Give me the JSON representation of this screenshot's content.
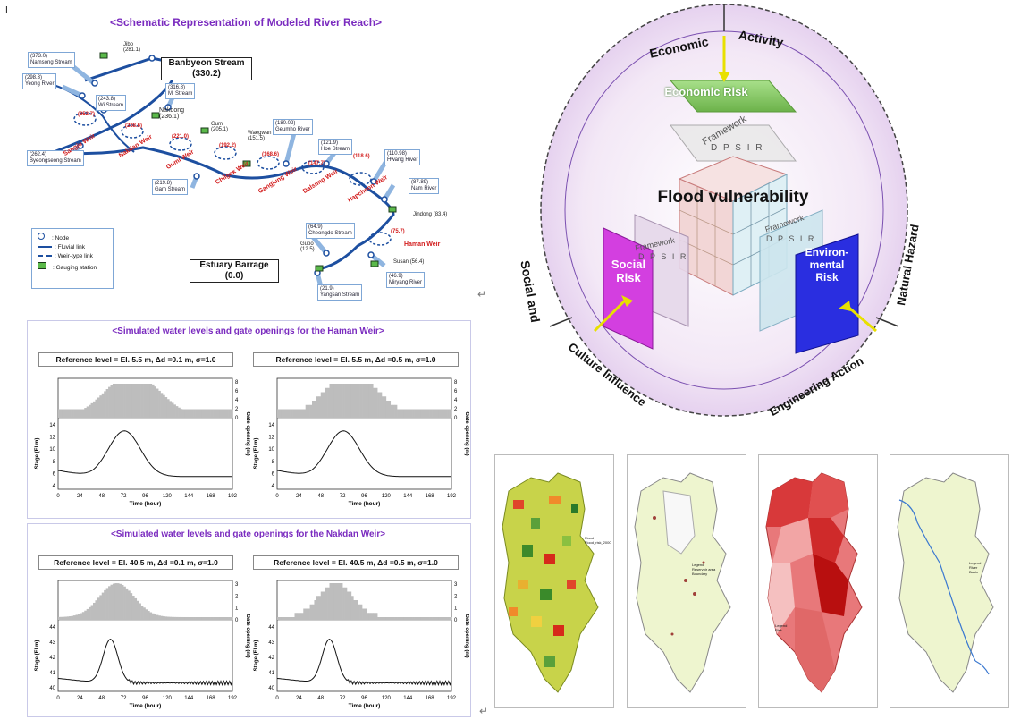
{
  "page_mark": "I",
  "river": {
    "title": "<Schematic Representation of Modeled River Reach>",
    "banbyeon": "Banbyeon Stream",
    "banbyeon_km": "(330.2)",
    "estuary": "Estuary Barrage",
    "estuary_km": "(0.0)",
    "streams": [
      {
        "code": "(373.0)",
        "name": "Namsong Stream"
      },
      {
        "code": "(298.3)",
        "name": "Yeong River"
      },
      {
        "code": "(243.8)",
        "name": "Wi Stream"
      },
      {
        "code": "(316.8)",
        "name": "Mi Stream"
      },
      {
        "code": "(262.4)",
        "name": "Byeongseong Stream"
      },
      {
        "code": "(219.8)",
        "name": "Gam Stream"
      },
      {
        "code": "(180.02)",
        "name": "Geumho River"
      },
      {
        "code": "(121.9)",
        "name": "Hoe Stream"
      },
      {
        "code": "(110.98)",
        "name": "Hwang River"
      },
      {
        "code": "(87.89)",
        "name": "Nam River"
      },
      {
        "code": "(64.9)",
        "name": "Cheongdo Stream"
      },
      {
        "code": "(46.9)",
        "name": "Miryang River"
      },
      {
        "code": "(21.9)",
        "name": "Yangsan Stream"
      }
    ],
    "stations": [
      {
        "name": "Jibo",
        "km": "(281.1)"
      },
      {
        "name": "Nakdong",
        "km": "(236.1)"
      },
      {
        "name": "Gumi",
        "km": "(205.1)"
      },
      {
        "name": "Waegwan",
        "km": "(151.5)"
      },
      {
        "name": "Jindong",
        "km": "(83.4)"
      },
      {
        "name": "Susan",
        "km": "(56.4)"
      },
      {
        "name": "Gupo",
        "km": "(12.5)"
      }
    ],
    "weirs": [
      {
        "name": "Sangju Weir",
        "km": "(252.7)"
      },
      {
        "name": "Nakdan Weir",
        "km": "(238.6)"
      },
      {
        "name": "Gumi Weir",
        "km": "(221.0)"
      },
      {
        "name": "Chilgok Weir",
        "km": "(192.2)"
      },
      {
        "name": "Gangjung Weir",
        "km": "(168.6)"
      },
      {
        "name": "Dalsung Weir",
        "km": "(147.7)"
      },
      {
        "name": "Hapcheon Weir",
        "km": "(118.6)"
      },
      {
        "name": "Haman Weir",
        "km": "(75.7)"
      }
    ],
    "legend": [
      {
        "sym": "node",
        "label": ": Node"
      },
      {
        "sym": "fluvial",
        "label": ": Fluvial link"
      },
      {
        "sym": "weir",
        "label": ": Weir-type link"
      },
      {
        "sym": "gauging",
        "label": ": Gauging station"
      }
    ]
  },
  "haman": {
    "title": "<Simulated water levels and gate openings for the Haman Weir>",
    "left_label": "Reference level = El. 5.5 m, Δd =0.1 m, σ=1.0",
    "right_label": "Reference level = El. 5.5 m, Δd =0.5 m, σ=1.0",
    "ylabel": "Stage (El.m)",
    "y2label": "Gate opening (m)",
    "xlabel": "Time (hour)",
    "xticks": [
      "0",
      "24",
      "48",
      "72",
      "96",
      "120",
      "144",
      "168",
      "192"
    ],
    "yticks": [
      "4",
      "6",
      "8",
      "10",
      "12",
      "14"
    ],
    "y2ticks": [
      "0",
      "2",
      "4",
      "6",
      "8"
    ]
  },
  "nakdan": {
    "title": "<Simulated water levels and gate openings for the Nakdan Weir>",
    "left_label": "Reference level = El. 40.5 m, Δd =0.1 m, σ=1.0",
    "right_label": "Reference level = El. 40.5 m, Δd =0.5 m, σ=1.0",
    "ylabel": "Stage (El.m)",
    "y2label": "Gate opening (m)",
    "xlabel": "Time (hour)",
    "xticks": [
      "0",
      "24",
      "48",
      "72",
      "96",
      "120",
      "144",
      "168",
      "192"
    ],
    "yticks": [
      "40",
      "41",
      "42",
      "43",
      "44"
    ],
    "y2ticks": [
      "0",
      "1",
      "2",
      "3"
    ]
  },
  "vulnerability": {
    "center": "Flood vulnerability",
    "economic_risk": "Economic Risk",
    "social_risk": "Social Risk",
    "env_risk": "Environ-mental Risk",
    "framework": "Framework",
    "dpsir": "D P S I R",
    "arc_labels": {
      "top_left": "Economic",
      "top_right": "Activity",
      "left_upper": "Social and",
      "left_lower": "Culture Influence",
      "right_upper": "Natural Hazard",
      "right_lower": "Engineering Action"
    },
    "colors": {
      "economic": "#8fd06a",
      "social": "#d33fe0",
      "environmental": "#2a2ee0",
      "arrow": "#e8e000"
    }
  },
  "maps": [
    {
      "name": "Multicolor choropleth",
      "legend_title": "Flood",
      "legend_lines": [
        "Flood_risk_2000",
        "0.0",
        "0.1",
        "0.2",
        "0.3",
        "0.4",
        "0.5",
        "0.6",
        "0.7",
        "0.8",
        "0.9"
      ]
    },
    {
      "name": "Point map",
      "legend_title": "Legend",
      "legend_lines": [
        "Reservoir area",
        "Boundary"
      ]
    },
    {
      "name": "Red choropleth",
      "legend_title": "Legend",
      "legend_lines": [
        "Risk",
        "1 - 2",
        "2 - 3",
        "3 - 4",
        "4 - 5"
      ]
    },
    {
      "name": "River map",
      "legend_title": "Legend",
      "legend_lines": [
        "River",
        "Basin"
      ]
    }
  ],
  "arrow_glyph": "↵"
}
